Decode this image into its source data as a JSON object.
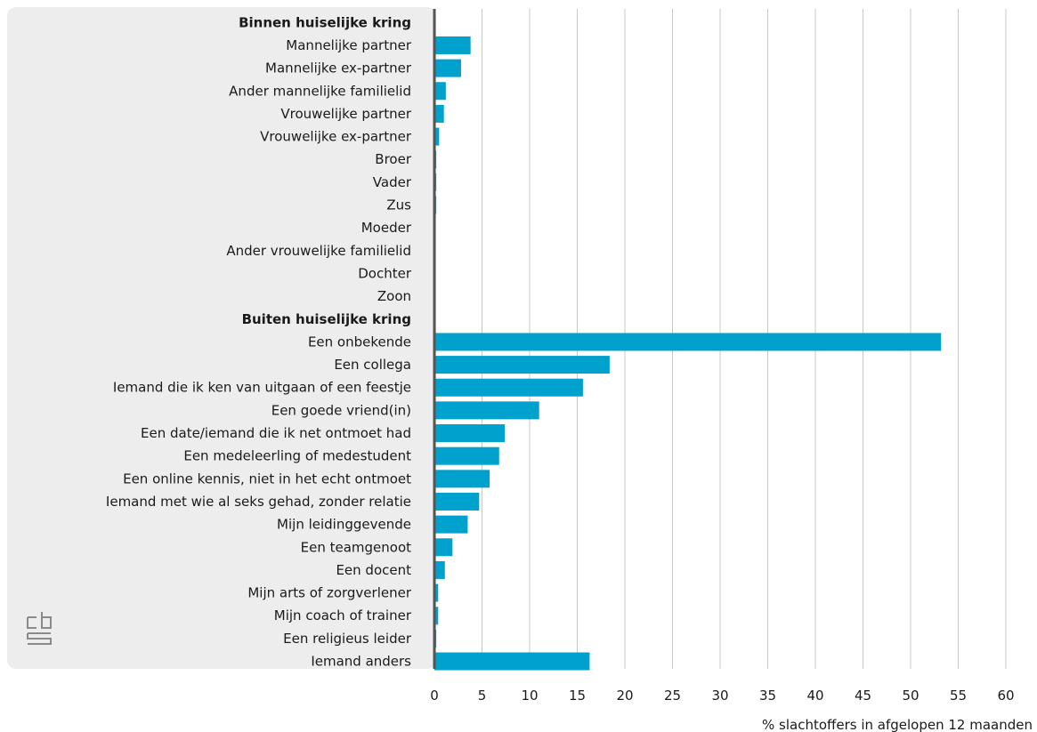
{
  "chart_data": {
    "type": "bar",
    "orientation": "horizontal",
    "xlabel": "% slachtoffers in afgelopen 12 maanden",
    "xlim": [
      0,
      60
    ],
    "xticks": [
      "0",
      "5",
      "10",
      "15",
      "20",
      "25",
      "30",
      "35",
      "40",
      "45",
      "50",
      "55",
      "60"
    ],
    "grid": true,
    "bar_color": "#00a1cd",
    "rows": [
      {
        "label": "Binnen huiselijke kring",
        "header": true
      },
      {
        "label": "Mannelijke partner",
        "value": 3.8
      },
      {
        "label": "Mannelijke ex-partner",
        "value": 2.8
      },
      {
        "label": "Ander mannelijke familielid",
        "value": 1.2
      },
      {
        "label": "Vrouwelijke partner",
        "value": 1.0
      },
      {
        "label": "Vrouwelijke ex-partner",
        "value": 0.5
      },
      {
        "label": "Broer",
        "value": 0.2
      },
      {
        "label": "Vader",
        "value": 0.2
      },
      {
        "label": "Zus",
        "value": 0.2
      },
      {
        "label": "Moeder",
        "value": 0.1
      },
      {
        "label": "Ander vrouwelijke familielid",
        "value": 0.1
      },
      {
        "label": "Dochter",
        "value": 0.0
      },
      {
        "label": "Zoon",
        "value": 0.0
      },
      {
        "label": "Buiten huiselijke kring",
        "header": true
      },
      {
        "label": "Een onbekende",
        "value": 53.2
      },
      {
        "label": "Een collega",
        "value": 18.4
      },
      {
        "label": "Iemand die ik ken van uitgaan of een feestje",
        "value": 15.6
      },
      {
        "label": "Een goede vriend(in)",
        "value": 11.0
      },
      {
        "label": "Een date/iemand die ik net ontmoet had",
        "value": 7.4
      },
      {
        "label": "Een medeleerling of medestudent",
        "value": 6.8
      },
      {
        "label": "Een online kennis, niet in het echt ontmoet",
        "value": 5.8
      },
      {
        "label": "Iemand met wie al seks gehad, zonder relatie",
        "value": 4.7
      },
      {
        "label": "Mijn leidinggevende",
        "value": 3.5
      },
      {
        "label": "Een teamgenoot",
        "value": 1.9
      },
      {
        "label": "Een docent",
        "value": 1.1
      },
      {
        "label": "Mijn arts of zorgverlener",
        "value": 0.4
      },
      {
        "label": "Mijn coach of trainer",
        "value": 0.4
      },
      {
        "label": "Een religieus leider",
        "value": 0.2
      },
      {
        "label": "Iemand anders",
        "value": 16.3
      }
    ]
  },
  "logo": {
    "icon": "cbs-logo-icon"
  }
}
